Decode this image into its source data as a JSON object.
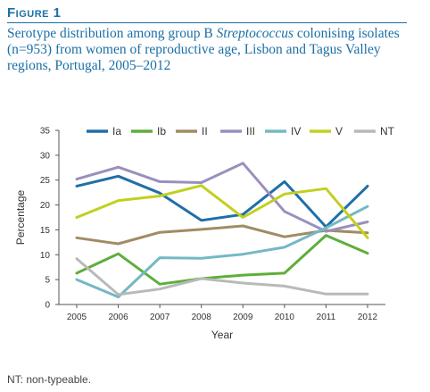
{
  "figure": {
    "label": "Figure 1",
    "title_before": "Serotype distribution among group B ",
    "title_italic": "Streptococcus",
    "title_after": " colonising isolates (n=953) from women of reproductive age, Lisbon and Tagus Valley regions, Portugal, 2005–2012",
    "footnote": "NT: non-typeable."
  },
  "chart_data": {
    "type": "line",
    "x": [
      "2005",
      "2006",
      "2007",
      "2008",
      "2009",
      "2010",
      "2011",
      "2012"
    ],
    "xlabel": "Year",
    "ylabel": "Percentage",
    "ylim": [
      0,
      35
    ],
    "yticks": [
      "0",
      "5",
      "10",
      "15",
      "20",
      "25",
      "30",
      "35"
    ],
    "grid": false,
    "legend": "top",
    "series": [
      {
        "name": "Ia",
        "color": "#1f6fa8",
        "values": [
          23.8,
          25.8,
          22.4,
          16.9,
          18.1,
          24.7,
          15.6,
          23.8
        ]
      },
      {
        "name": "Ib",
        "color": "#5fae3b",
        "values": [
          6.3,
          10.2,
          4.1,
          5.2,
          5.9,
          6.3,
          13.9,
          10.3
        ]
      },
      {
        "name": "II",
        "color": "#a08c64",
        "values": [
          13.4,
          12.2,
          14.5,
          15.1,
          15.8,
          13.6,
          14.9,
          14.4
        ]
      },
      {
        "name": "III",
        "color": "#9b8fbd",
        "values": [
          25.2,
          27.6,
          24.7,
          24.5,
          28.4,
          18.7,
          14.7,
          16.6
        ]
      },
      {
        "name": "IV",
        "color": "#74b8c4",
        "values": [
          5.0,
          1.5,
          9.4,
          9.3,
          10.1,
          11.5,
          15.4,
          19.7
        ]
      },
      {
        "name": "V",
        "color": "#c1d01e",
        "values": [
          17.5,
          20.9,
          21.8,
          23.9,
          17.5,
          22.2,
          23.3,
          13.4
        ]
      },
      {
        "name": "NT",
        "color": "#b9b9b9",
        "values": [
          9.2,
          2.0,
          3.1,
          5.2,
          4.3,
          3.7,
          2.1,
          2.1
        ]
      }
    ]
  }
}
